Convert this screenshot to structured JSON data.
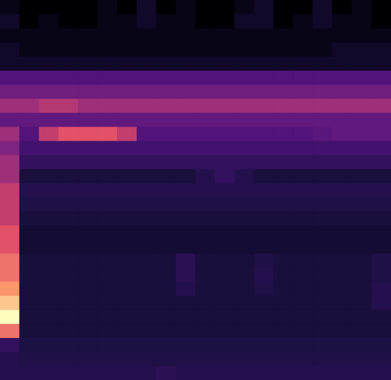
{
  "chart_data": {
    "type": "heatmap",
    "tick_labels": false,
    "cells": [
      [
        1.5,
        1.0,
        1.0,
        1.0,
        1.0,
        1.5,
        1.0,
        2.0,
        1.0,
        1.5,
        1.0,
        1.0,
        1.5,
        2.0,
        1.0,
        1.0,
        2.0,
        1.0,
        1.5,
        1.0
      ],
      [
        2.0,
        1.0,
        1.5,
        1.0,
        1.0,
        1.5,
        1.5,
        2.0,
        1.5,
        1.5,
        1.0,
        1.0,
        2.0,
        2.0,
        1.0,
        1.5,
        2.0,
        1.5,
        1.5,
        1.0
      ],
      [
        1.5,
        1.5,
        1.5,
        1.5,
        1.5,
        1.5,
        1.5,
        1.5,
        1.5,
        1.5,
        1.5,
        1.5,
        1.5,
        1.5,
        1.5,
        1.5,
        1.5,
        1.5,
        1.5,
        1.5
      ],
      [
        2.0,
        1.5,
        1.5,
        1.5,
        1.5,
        1.5,
        1.5,
        1.5,
        1.5,
        1.5,
        1.5,
        1.5,
        1.5,
        1.5,
        1.5,
        1.5,
        1.5,
        2.0,
        2.0,
        2.0
      ],
      [
        2.0,
        2.0,
        2.0,
        2.0,
        2.0,
        2.0,
        2.0,
        2.0,
        2.0,
        2.0,
        2.0,
        2.0,
        2.0,
        2.0,
        2.0,
        2.0,
        2.0,
        2.0,
        2.0,
        2.0
      ],
      [
        4.5,
        4.5,
        4.5,
        4.5,
        4.5,
        4.5,
        4.5,
        4.5,
        4.5,
        4.5,
        4.5,
        4.5,
        4.5,
        4.5,
        4.5,
        4.5,
        4.5,
        4.5,
        4.5,
        4.5
      ],
      [
        5.5,
        5.5,
        5.5,
        5.5,
        5.5,
        5.5,
        5.5,
        5.5,
        5.5,
        5.5,
        5.5,
        5.5,
        5.5,
        5.5,
        5.5,
        5.5,
        5.5,
        5.5,
        5.5,
        5.5
      ],
      [
        6.5,
        6.5,
        6.8,
        6.8,
        6.5,
        6.5,
        6.5,
        6.5,
        6.5,
        6.5,
        6.5,
        6.5,
        6.5,
        6.5,
        6.5,
        6.5,
        6.5,
        6.5,
        6.5,
        6.5
      ],
      [
        5.0,
        5.0,
        5.0,
        5.0,
        5.0,
        5.0,
        5.0,
        5.0,
        5.0,
        5.0,
        5.0,
        5.0,
        5.0,
        5.0,
        5.0,
        5.0,
        5.0,
        5.0,
        5.0,
        5.0
      ],
      [
        6.5,
        4.5,
        7.0,
        7.5,
        7.5,
        7.5,
        7.0,
        4.5,
        4.5,
        4.5,
        4.5,
        4.5,
        4.5,
        4.5,
        4.5,
        4.5,
        4.8,
        5.0,
        5.0,
        5.0
      ],
      [
        6.0,
        4.0,
        4.0,
        4.0,
        4.0,
        4.0,
        4.0,
        4.0,
        4.0,
        4.0,
        4.0,
        4.0,
        4.0,
        4.0,
        4.0,
        4.0,
        4.0,
        4.0,
        4.0,
        4.0
      ],
      [
        6.5,
        3.5,
        3.5,
        3.5,
        3.5,
        3.5,
        3.5,
        3.5,
        3.5,
        3.5,
        3.5,
        3.5,
        3.5,
        3.5,
        3.5,
        3.5,
        3.5,
        3.5,
        3.5,
        3.5
      ],
      [
        6.5,
        2.5,
        2.5,
        2.5,
        2.5,
        2.5,
        2.5,
        2.5,
        2.5,
        2.5,
        3.0,
        3.5,
        3.0,
        2.5,
        2.5,
        2.5,
        2.5,
        2.5,
        2.5,
        2.5
      ],
      [
        7.0,
        3.0,
        3.0,
        3.0,
        3.0,
        3.0,
        3.0,
        3.0,
        3.0,
        3.0,
        3.0,
        3.0,
        3.0,
        3.0,
        3.0,
        3.0,
        3.0,
        3.0,
        3.0,
        3.0
      ],
      [
        7.0,
        2.8,
        2.8,
        2.8,
        2.8,
        2.8,
        2.8,
        2.8,
        2.8,
        2.8,
        2.8,
        2.8,
        2.8,
        2.8,
        2.8,
        2.8,
        2.8,
        2.8,
        2.8,
        2.8
      ],
      [
        7.0,
        2.5,
        2.5,
        2.5,
        2.5,
        2.5,
        2.5,
        2.5,
        2.5,
        2.5,
        2.5,
        2.5,
        2.5,
        2.5,
        2.5,
        2.5,
        2.5,
        2.5,
        2.5,
        2.5
      ],
      [
        7.5,
        2.3,
        2.3,
        2.3,
        2.3,
        2.3,
        2.3,
        2.3,
        2.3,
        2.3,
        2.3,
        2.3,
        2.3,
        2.3,
        2.3,
        2.3,
        2.3,
        2.3,
        2.3,
        2.3
      ],
      [
        7.5,
        2.3,
        2.3,
        2.3,
        2.3,
        2.3,
        2.3,
        2.3,
        2.3,
        2.3,
        2.3,
        2.3,
        2.3,
        2.3,
        2.3,
        2.3,
        2.3,
        2.3,
        2.3,
        2.3
      ],
      [
        8.0,
        2.5,
        2.5,
        2.5,
        2.5,
        2.5,
        2.5,
        2.5,
        2.5,
        3.2,
        2.5,
        2.5,
        2.5,
        2.8,
        2.5,
        2.5,
        2.5,
        2.5,
        2.5,
        2.8
      ],
      [
        8.0,
        2.5,
        2.5,
        2.5,
        2.5,
        2.5,
        2.5,
        2.5,
        2.5,
        3.2,
        2.5,
        2.5,
        2.5,
        3.0,
        2.5,
        2.5,
        2.5,
        2.5,
        2.5,
        2.8
      ],
      [
        8.5,
        2.5,
        2.5,
        2.5,
        2.5,
        2.5,
        2.5,
        2.5,
        2.5,
        3.0,
        2.5,
        2.5,
        2.5,
        2.8,
        2.5,
        2.5,
        2.5,
        2.5,
        2.5,
        3.0
      ],
      [
        9.0,
        2.5,
        2.5,
        2.5,
        2.5,
        2.5,
        2.5,
        2.5,
        2.5,
        2.5,
        2.5,
        2.5,
        2.5,
        2.5,
        2.5,
        2.5,
        2.5,
        2.5,
        2.5,
        3.0
      ],
      [
        9.5,
        2.5,
        2.5,
        2.5,
        2.5,
        2.5,
        2.5,
        2.5,
        2.5,
        2.5,
        2.5,
        2.5,
        2.5,
        2.5,
        2.5,
        2.5,
        2.5,
        2.5,
        2.5,
        2.5
      ],
      [
        8.0,
        2.5,
        2.5,
        2.5,
        2.5,
        2.5,
        2.5,
        2.5,
        2.5,
        2.5,
        2.5,
        2.5,
        2.5,
        2.5,
        2.5,
        2.5,
        2.5,
        2.5,
        2.5,
        2.5
      ],
      [
        3.5,
        2.7,
        2.7,
        2.7,
        2.7,
        2.7,
        2.7,
        2.7,
        2.7,
        2.7,
        2.7,
        2.7,
        2.7,
        2.7,
        2.7,
        2.7,
        2.7,
        2.7,
        2.7,
        2.7
      ],
      [
        3.0,
        2.8,
        2.8,
        2.8,
        2.8,
        2.8,
        2.8,
        2.8,
        2.8,
        2.8,
        2.8,
        2.8,
        2.8,
        2.8,
        2.8,
        2.8,
        2.8,
        2.8,
        2.8,
        2.8
      ],
      [
        3.0,
        3.0,
        3.0,
        3.0,
        3.0,
        3.0,
        3.0,
        3.0,
        3.2,
        3.0,
        3.0,
        3.0,
        3.0,
        3.0,
        3.0,
        3.0,
        3.0,
        3.0,
        3.0,
        3.0
      ]
    ]
  }
}
